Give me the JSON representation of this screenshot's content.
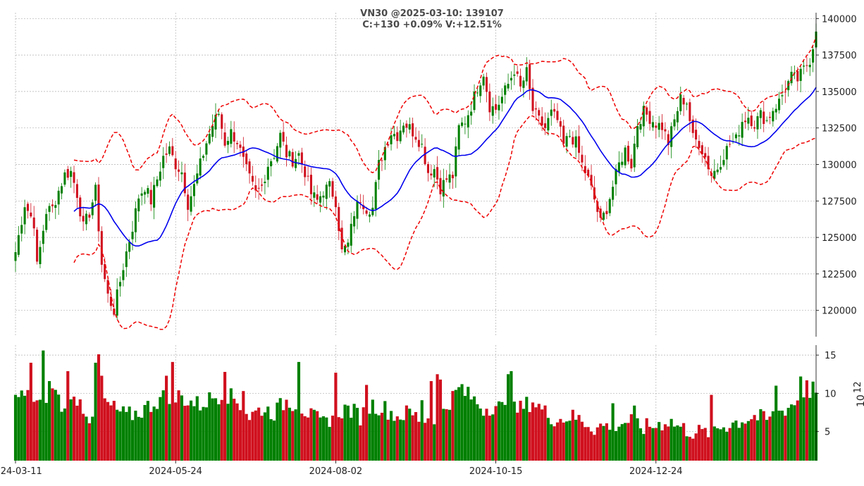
{
  "chart_data": {
    "type": "candlestick",
    "title": "VN30 @2025-03-10: 139107",
    "subtitle": "C:+130 +0.09% V:+12.51%",
    "price_axis": {
      "ticks": [
        120000,
        122500,
        125000,
        127500,
        130000,
        132500,
        135000,
        137500,
        140000
      ],
      "tick_labels": [
        "120000",
        "122500",
        "125000",
        "127500",
        "130000",
        "132500",
        "135000",
        "137500",
        "140000"
      ],
      "range": [
        118200,
        140400
      ]
    },
    "volume_axis": {
      "ticks": [
        5,
        10,
        15
      ],
      "tick_labels": [
        "5",
        "10",
        "15"
      ],
      "range": [
        1.2,
        16.3
      ],
      "exponent_label": "10",
      "exponent_power": "12"
    },
    "x_axis": {
      "tick_labels": [
        "2024-03-11",
        "2024-05-24",
        "2024-08-02",
        "2024-10-15",
        "2024-12-24"
      ],
      "tick_index": [
        0,
        52,
        104,
        156,
        208
      ]
    },
    "grid": true,
    "colors": {
      "up": "#008000",
      "down": "#d0101e",
      "sma": "#0000ee",
      "bands": "#ee0000"
    },
    "indicators": [
      "SMA20 (blue)",
      "Bollinger bands (red dashed)"
    ],
    "close_keyframes": [
      [
        0,
        124000
      ],
      [
        3,
        127300
      ],
      [
        6,
        126000
      ],
      [
        7,
        123000
      ],
      [
        10,
        126800
      ],
      [
        12,
        127000
      ],
      [
        14,
        128200
      ],
      [
        16,
        129300
      ],
      [
        18,
        129500
      ],
      [
        20,
        128000
      ],
      [
        22,
        125700
      ],
      [
        24,
        126700
      ],
      [
        26,
        128200
      ],
      [
        28,
        123200
      ],
      [
        30,
        121000
      ],
      [
        32,
        120000
      ],
      [
        34,
        122000
      ],
      [
        36,
        124000
      ],
      [
        38,
        125700
      ],
      [
        40,
        127800
      ],
      [
        42,
        128500
      ],
      [
        44,
        127500
      ],
      [
        46,
        129000
      ],
      [
        48,
        130500
      ],
      [
        50,
        131000
      ],
      [
        52,
        130000
      ],
      [
        54,
        129500
      ],
      [
        56,
        127300
      ],
      [
        58,
        128500
      ],
      [
        60,
        130000
      ],
      [
        62,
        131500
      ],
      [
        64,
        132700
      ],
      [
        66,
        133500
      ],
      [
        68,
        131500
      ],
      [
        70,
        132200
      ],
      [
        72,
        131600
      ],
      [
        74,
        130200
      ],
      [
        76,
        129000
      ],
      [
        78,
        128000
      ],
      [
        80,
        128500
      ],
      [
        82,
        130000
      ],
      [
        84,
        130700
      ],
      [
        86,
        132000
      ],
      [
        88,
        130700
      ],
      [
        90,
        130300
      ],
      [
        92,
        130700
      ],
      [
        94,
        129500
      ],
      [
        96,
        128000
      ],
      [
        98,
        127500
      ],
      [
        100,
        128200
      ],
      [
        102,
        128500
      ],
      [
        104,
        127500
      ],
      [
        106,
        124000
      ],
      [
        108,
        124500
      ],
      [
        110,
        126700
      ],
      [
        112,
        127700
      ],
      [
        114,
        127000
      ],
      [
        116,
        127000
      ],
      [
        118,
        130000
      ],
      [
        120,
        131200
      ],
      [
        122,
        132200
      ],
      [
        124,
        132000
      ],
      [
        126,
        132900
      ],
      [
        128,
        132500
      ],
      [
        130,
        132000
      ],
      [
        132,
        131300
      ],
      [
        134,
        129500
      ],
      [
        136,
        129700
      ],
      [
        138,
        128400
      ],
      [
        140,
        129000
      ],
      [
        142,
        129200
      ],
      [
        144,
        132500
      ],
      [
        146,
        133000
      ],
      [
        148,
        134000
      ],
      [
        150,
        135300
      ],
      [
        152,
        136300
      ],
      [
        154,
        134000
      ],
      [
        156,
        133800
      ],
      [
        158,
        134600
      ],
      [
        160,
        135500
      ],
      [
        162,
        136500
      ],
      [
        164,
        135200
      ],
      [
        166,
        136300
      ],
      [
        168,
        133700
      ],
      [
        170,
        133000
      ],
      [
        172,
        132500
      ],
      [
        174,
        133500
      ],
      [
        176,
        133000
      ],
      [
        178,
        131300
      ],
      [
        180,
        132000
      ],
      [
        182,
        131500
      ],
      [
        184,
        130000
      ],
      [
        186,
        129000
      ],
      [
        188,
        127600
      ],
      [
        190,
        126000
      ],
      [
        192,
        127000
      ],
      [
        194,
        128500
      ],
      [
        196,
        130000
      ],
      [
        198,
        131000
      ],
      [
        200,
        130000
      ],
      [
        202,
        132800
      ],
      [
        204,
        133600
      ],
      [
        206,
        133200
      ],
      [
        208,
        132800
      ],
      [
        210,
        132600
      ],
      [
        212,
        131500
      ],
      [
        214,
        133000
      ],
      [
        216,
        134500
      ],
      [
        218,
        134300
      ],
      [
        220,
        131800
      ],
      [
        222,
        131500
      ],
      [
        224,
        130500
      ],
      [
        226,
        129300
      ],
      [
        228,
        129800
      ],
      [
        230,
        130700
      ],
      [
        232,
        131400
      ],
      [
        234,
        131700
      ],
      [
        236,
        133000
      ],
      [
        238,
        133300
      ],
      [
        240,
        132800
      ],
      [
        242,
        133400
      ],
      [
        244,
        133000
      ],
      [
        246,
        133800
      ],
      [
        248,
        134300
      ],
      [
        250,
        135200
      ],
      [
        252,
        136000
      ],
      [
        254,
        135800
      ],
      [
        256,
        136500
      ],
      [
        258,
        137200
      ],
      [
        260,
        139107
      ]
    ],
    "volume_keyframes": [
      [
        0,
        9.8
      ],
      [
        4,
        9.5
      ],
      [
        8,
        8.5
      ],
      [
        12,
        11.0
      ],
      [
        16,
        7.5
      ],
      [
        20,
        9.5
      ],
      [
        24,
        7.0
      ],
      [
        28,
        9.0
      ],
      [
        32,
        8.0
      ],
      [
        36,
        7.0
      ],
      [
        40,
        7.5
      ],
      [
        44,
        8.5
      ],
      [
        48,
        9.5
      ],
      [
        52,
        10.0
      ],
      [
        56,
        9.0
      ],
      [
        60,
        8.5
      ],
      [
        64,
        9.5
      ],
      [
        68,
        10.0
      ],
      [
        72,
        9.0
      ],
      [
        76,
        7.0
      ],
      [
        80,
        8.0
      ],
      [
        84,
        7.5
      ],
      [
        88,
        9.0
      ],
      [
        92,
        8.5
      ],
      [
        96,
        7.0
      ],
      [
        100,
        6.0
      ],
      [
        104,
        7.5
      ],
      [
        108,
        8.0
      ],
      [
        112,
        7.0
      ],
      [
        116,
        8.5
      ],
      [
        120,
        8.0
      ],
      [
        124,
        7.0
      ],
      [
        128,
        7.5
      ],
      [
        132,
        6.5
      ],
      [
        136,
        7.0
      ],
      [
        140,
        8.5
      ],
      [
        144,
        10.5
      ],
      [
        148,
        9.5
      ],
      [
        152,
        8.0
      ],
      [
        156,
        8.5
      ],
      [
        160,
        7.5
      ],
      [
        164,
        8.0
      ],
      [
        168,
        9.0
      ],
      [
        172,
        7.5
      ],
      [
        176,
        6.5
      ],
      [
        180,
        7.0
      ],
      [
        184,
        6.5
      ],
      [
        188,
        5.5
      ],
      [
        192,
        5.8
      ],
      [
        196,
        6.0
      ],
      [
        200,
        6.5
      ],
      [
        204,
        5.5
      ],
      [
        208,
        5.8
      ],
      [
        212,
        6.5
      ],
      [
        216,
        5.5
      ],
      [
        220,
        5.0
      ],
      [
        224,
        4.8
      ],
      [
        228,
        5.5
      ],
      [
        232,
        6.0
      ],
      [
        236,
        6.5
      ],
      [
        240,
        7.0
      ],
      [
        244,
        6.5
      ],
      [
        248,
        7.5
      ],
      [
        252,
        8.5
      ],
      [
        256,
        9.5
      ],
      [
        260,
        11.0
      ]
    ],
    "volume_spikes": [
      [
        0,
        9.8
      ],
      [
        5,
        14.0
      ],
      [
        9,
        15.6
      ],
      [
        11,
        11.6
      ],
      [
        17,
        12.9
      ],
      [
        26,
        14.0
      ],
      [
        27,
        15.1
      ],
      [
        28,
        12.3
      ],
      [
        49,
        12.3
      ],
      [
        51,
        14.1
      ],
      [
        52,
        8.8
      ],
      [
        68,
        12.8
      ],
      [
        74,
        10.3
      ],
      [
        92,
        14.1
      ],
      [
        104,
        12.7
      ],
      [
        114,
        11.1
      ],
      [
        132,
        9.1
      ],
      [
        135,
        11.6
      ],
      [
        137,
        12.5
      ],
      [
        138,
        11.8
      ],
      [
        145,
        11.2
      ],
      [
        160,
        12.5
      ],
      [
        161,
        12.9
      ],
      [
        194,
        8.7
      ],
      [
        201,
        8.4
      ],
      [
        226,
        9.8
      ],
      [
        247,
        11.0
      ],
      [
        255,
        12.2
      ],
      [
        257,
        11.7
      ]
    ]
  }
}
